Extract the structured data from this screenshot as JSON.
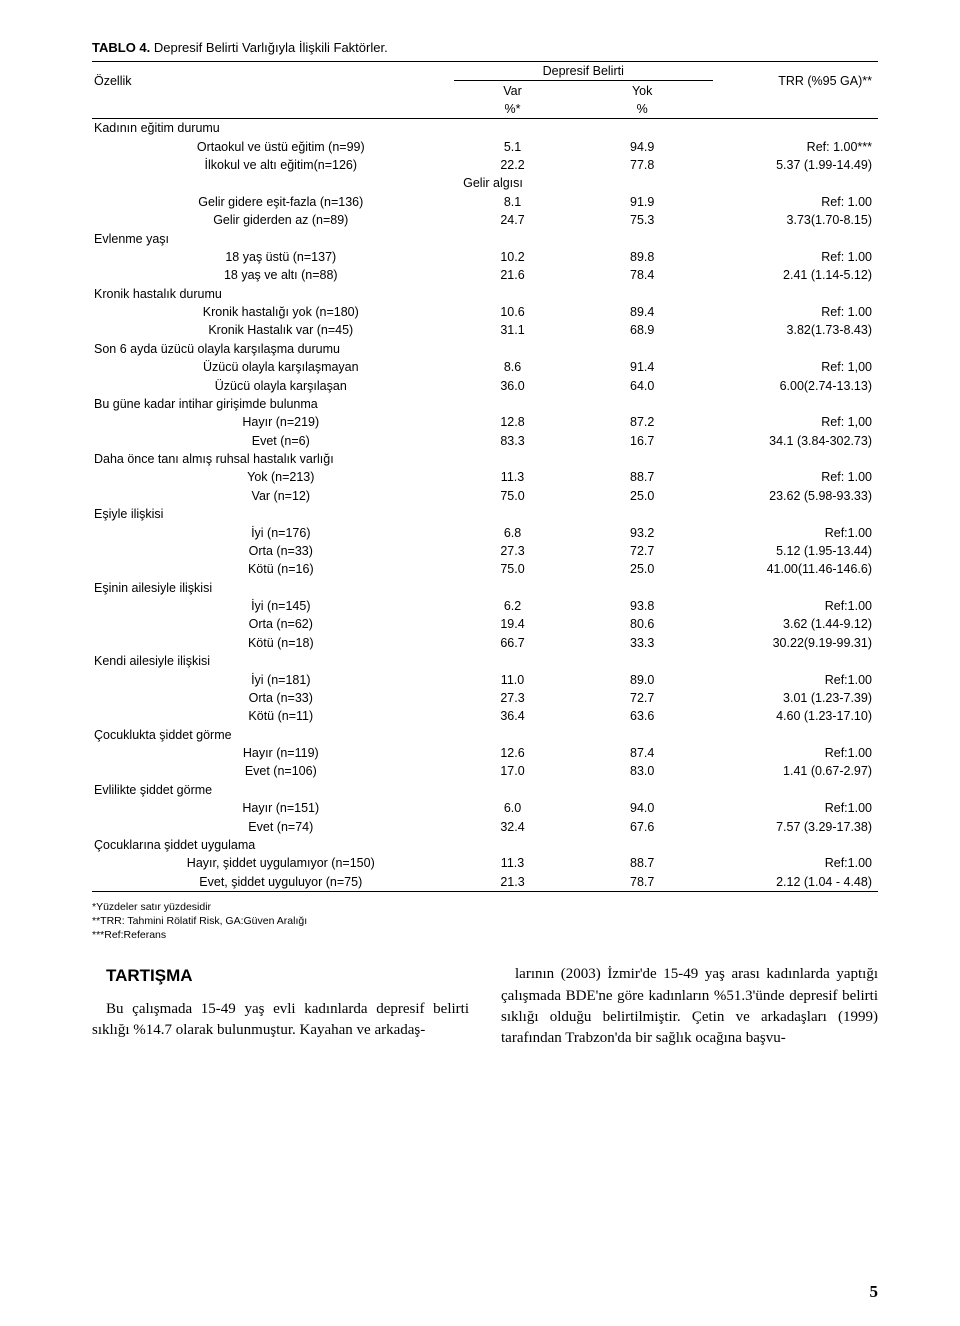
{
  "table": {
    "title_bold": "TABLO 4.",
    "title_rest": " Depresif Belirti Varlığıyla İlişkili Faktörler.",
    "header": {
      "corner": "Özellik",
      "span_label": "Depresif Belirti",
      "col_var": "Var",
      "col_yok": "Yok",
      "col_trr": "TRR (%95 GA)**",
      "unit_var": "%*",
      "unit_yok": "%"
    },
    "rows": [
      {
        "type": "group",
        "label": "Kadının eğitim durumu"
      },
      {
        "type": "data",
        "label": "Ortaokul ve üstü eğitim (n=99)",
        "var": "5.1",
        "yok": "94.9",
        "trr": "Ref: 1.00***"
      },
      {
        "type": "data",
        "label": "İlkokul ve altı eğitim(n=126)",
        "var": "22.2",
        "yok": "77.8",
        "trr": "5.37 (1.99-14.49)"
      },
      {
        "type": "group",
        "label": "Gelir algısı",
        "indent": true
      },
      {
        "type": "data",
        "label": "Gelir gidere eşit-fazla (n=136)",
        "var": "8.1",
        "yok": "91.9",
        "trr": "Ref: 1.00"
      },
      {
        "type": "data",
        "label": "Gelir giderden az (n=89)",
        "var": "24.7",
        "yok": "75.3",
        "trr": "3.73(1.70-8.15)"
      },
      {
        "type": "group",
        "label": "Evlenme yaşı"
      },
      {
        "type": "data",
        "label": "18 yaş üstü (n=137)",
        "var": "10.2",
        "yok": "89.8",
        "trr": "Ref: 1.00"
      },
      {
        "type": "data",
        "label": "18 yaş ve altı (n=88)",
        "var": "21.6",
        "yok": "78.4",
        "trr": "2.41 (1.14-5.12)"
      },
      {
        "type": "group",
        "label": "Kronik  hastalık durumu"
      },
      {
        "type": "data",
        "label": "Kronik hastalığı yok (n=180)",
        "var": "10.6",
        "yok": "89.4",
        "trr": "Ref: 1.00"
      },
      {
        "type": "data",
        "label": "Kronik Hastalık var (n=45)",
        "var": "31.1",
        "yok": "68.9",
        "trr": "3.82(1.73-8.43)"
      },
      {
        "type": "group",
        "label": "Son 6 ayda üzücü olayla karşılaşma durumu"
      },
      {
        "type": "data",
        "label": "Üzücü olayla karşılaşmayan",
        "var": "8.6",
        "yok": "91.4",
        "trr": "Ref: 1,00"
      },
      {
        "type": "data",
        "label": "Üzücü olayla karşılaşan",
        "var": "36.0",
        "yok": "64.0",
        "trr": "6.00(2.74-13.13)"
      },
      {
        "type": "group",
        "label": "Bu güne kadar intihar girişimde bulunma"
      },
      {
        "type": "data",
        "label": "Hayır  (n=219)",
        "var": "12.8",
        "yok": "87.2",
        "trr": "Ref: 1,00"
      },
      {
        "type": "data",
        "label": "Evet  (n=6)",
        "var": "83.3",
        "yok": "16.7",
        "trr": "34.1 (3.84-302.73)"
      },
      {
        "type": "group",
        "label": "Daha önce tanı almış ruhsal hastalık varlığı"
      },
      {
        "type": "data",
        "label": "Yok (n=213)",
        "var": "11.3",
        "yok": "88.7",
        "trr": "Ref: 1.00"
      },
      {
        "type": "data",
        "label": "Var  (n=12)",
        "var": "75.0",
        "yok": "25.0",
        "trr": "23.62 (5.98-93.33)"
      },
      {
        "type": "group",
        "label": "Eşiyle ilişkisi"
      },
      {
        "type": "data",
        "label": "İyi (n=176)",
        "var": "6.8",
        "yok": "93.2",
        "trr": "Ref:1.00"
      },
      {
        "type": "data",
        "label": "Orta (n=33)",
        "var": "27.3",
        "yok": "72.7",
        "trr": "5.12 (1.95-13.44)"
      },
      {
        "type": "data",
        "label": "Kötü (n=16)",
        "var": "75.0",
        "yok": "25.0",
        "trr": "41.00(11.46-146.6)"
      },
      {
        "type": "group",
        "label": "Eşinin ailesiyle ilişkisi"
      },
      {
        "type": "data",
        "label": "İyi (n=145)",
        "var": "6.2",
        "yok": "93.8",
        "trr": "Ref:1.00"
      },
      {
        "type": "data",
        "label": "Orta (n=62)",
        "var": "19.4",
        "yok": "80.6",
        "trr": "3.62 (1.44-9.12)"
      },
      {
        "type": "data",
        "label": "Kötü (n=18)",
        "var": "66.7",
        "yok": "33.3",
        "trr": "30.22(9.19-99.31)"
      },
      {
        "type": "group",
        "label": "Kendi  ailesiyle ilişkisi"
      },
      {
        "type": "data",
        "label": "İyi (n=181)",
        "var": "11.0",
        "yok": "89.0",
        "trr": "Ref:1.00"
      },
      {
        "type": "data",
        "label": "Orta (n=33)",
        "var": "27.3",
        "yok": "72.7",
        "trr": "3.01 (1.23-7.39)"
      },
      {
        "type": "data",
        "label": "Kötü (n=11)",
        "var": "36.4",
        "yok": "63.6",
        "trr": "4.60 (1.23-17.10)"
      },
      {
        "type": "group",
        "label": "Çocuklukta şiddet görme"
      },
      {
        "type": "data",
        "label": "Hayır (n=119)",
        "var": "12.6",
        "yok": "87.4",
        "trr": "Ref:1.00"
      },
      {
        "type": "data",
        "label": "Evet (n=106)",
        "var": "17.0",
        "yok": "83.0",
        "trr": "1.41 (0.67-2.97)"
      },
      {
        "type": "group",
        "label": "Evlilikte şiddet görme"
      },
      {
        "type": "data",
        "label": "Hayır (n=151)",
        "var": "6.0",
        "yok": "94.0",
        "trr": "Ref:1.00"
      },
      {
        "type": "data",
        "label": "Evet (n=74)",
        "var": "32.4",
        "yok": "67.6",
        "trr": "7.57 (3.29-17.38)"
      },
      {
        "type": "group",
        "label": "Çocuklarına şiddet uygulama"
      },
      {
        "type": "data",
        "label": "Hayır, şiddet uygulamıyor (n=150)",
        "var": "11.3",
        "yok": "88.7",
        "trr": "Ref:1.00"
      },
      {
        "type": "data",
        "label": "Evet, şiddet uyguluyor (n=75)",
        "var": "21.3",
        "yok": "78.7",
        "trr": "2.12 (1.04 - 4.48)"
      }
    ]
  },
  "footnotes": [
    "*Yüzdeler satır yüzdesidir",
    "**TRR: Tahmini Rölatif Risk, GA:Güven Aralığı",
    "***Ref:Referans"
  ],
  "discussion": {
    "heading": "TARTIŞMA",
    "p1": "Bu çalışmada 15-49 yaş evli kadınlarda depresif belirti sıklığı %14.7 olarak bulunmuştur. Kayahan ve arkadaş-",
    "p2": "larının (2003) İzmir'de 15-49 yaş arası kadınlarda yaptığı çalışmada BDE'ne göre kadınların %51.3'ünde depresif belirti sıklığı olduğu belirtilmiştir. Çetin ve arkadaşları (1999) tarafından Trabzon'da bir sağlık ocağına başvu-"
  },
  "page_number": "5"
}
